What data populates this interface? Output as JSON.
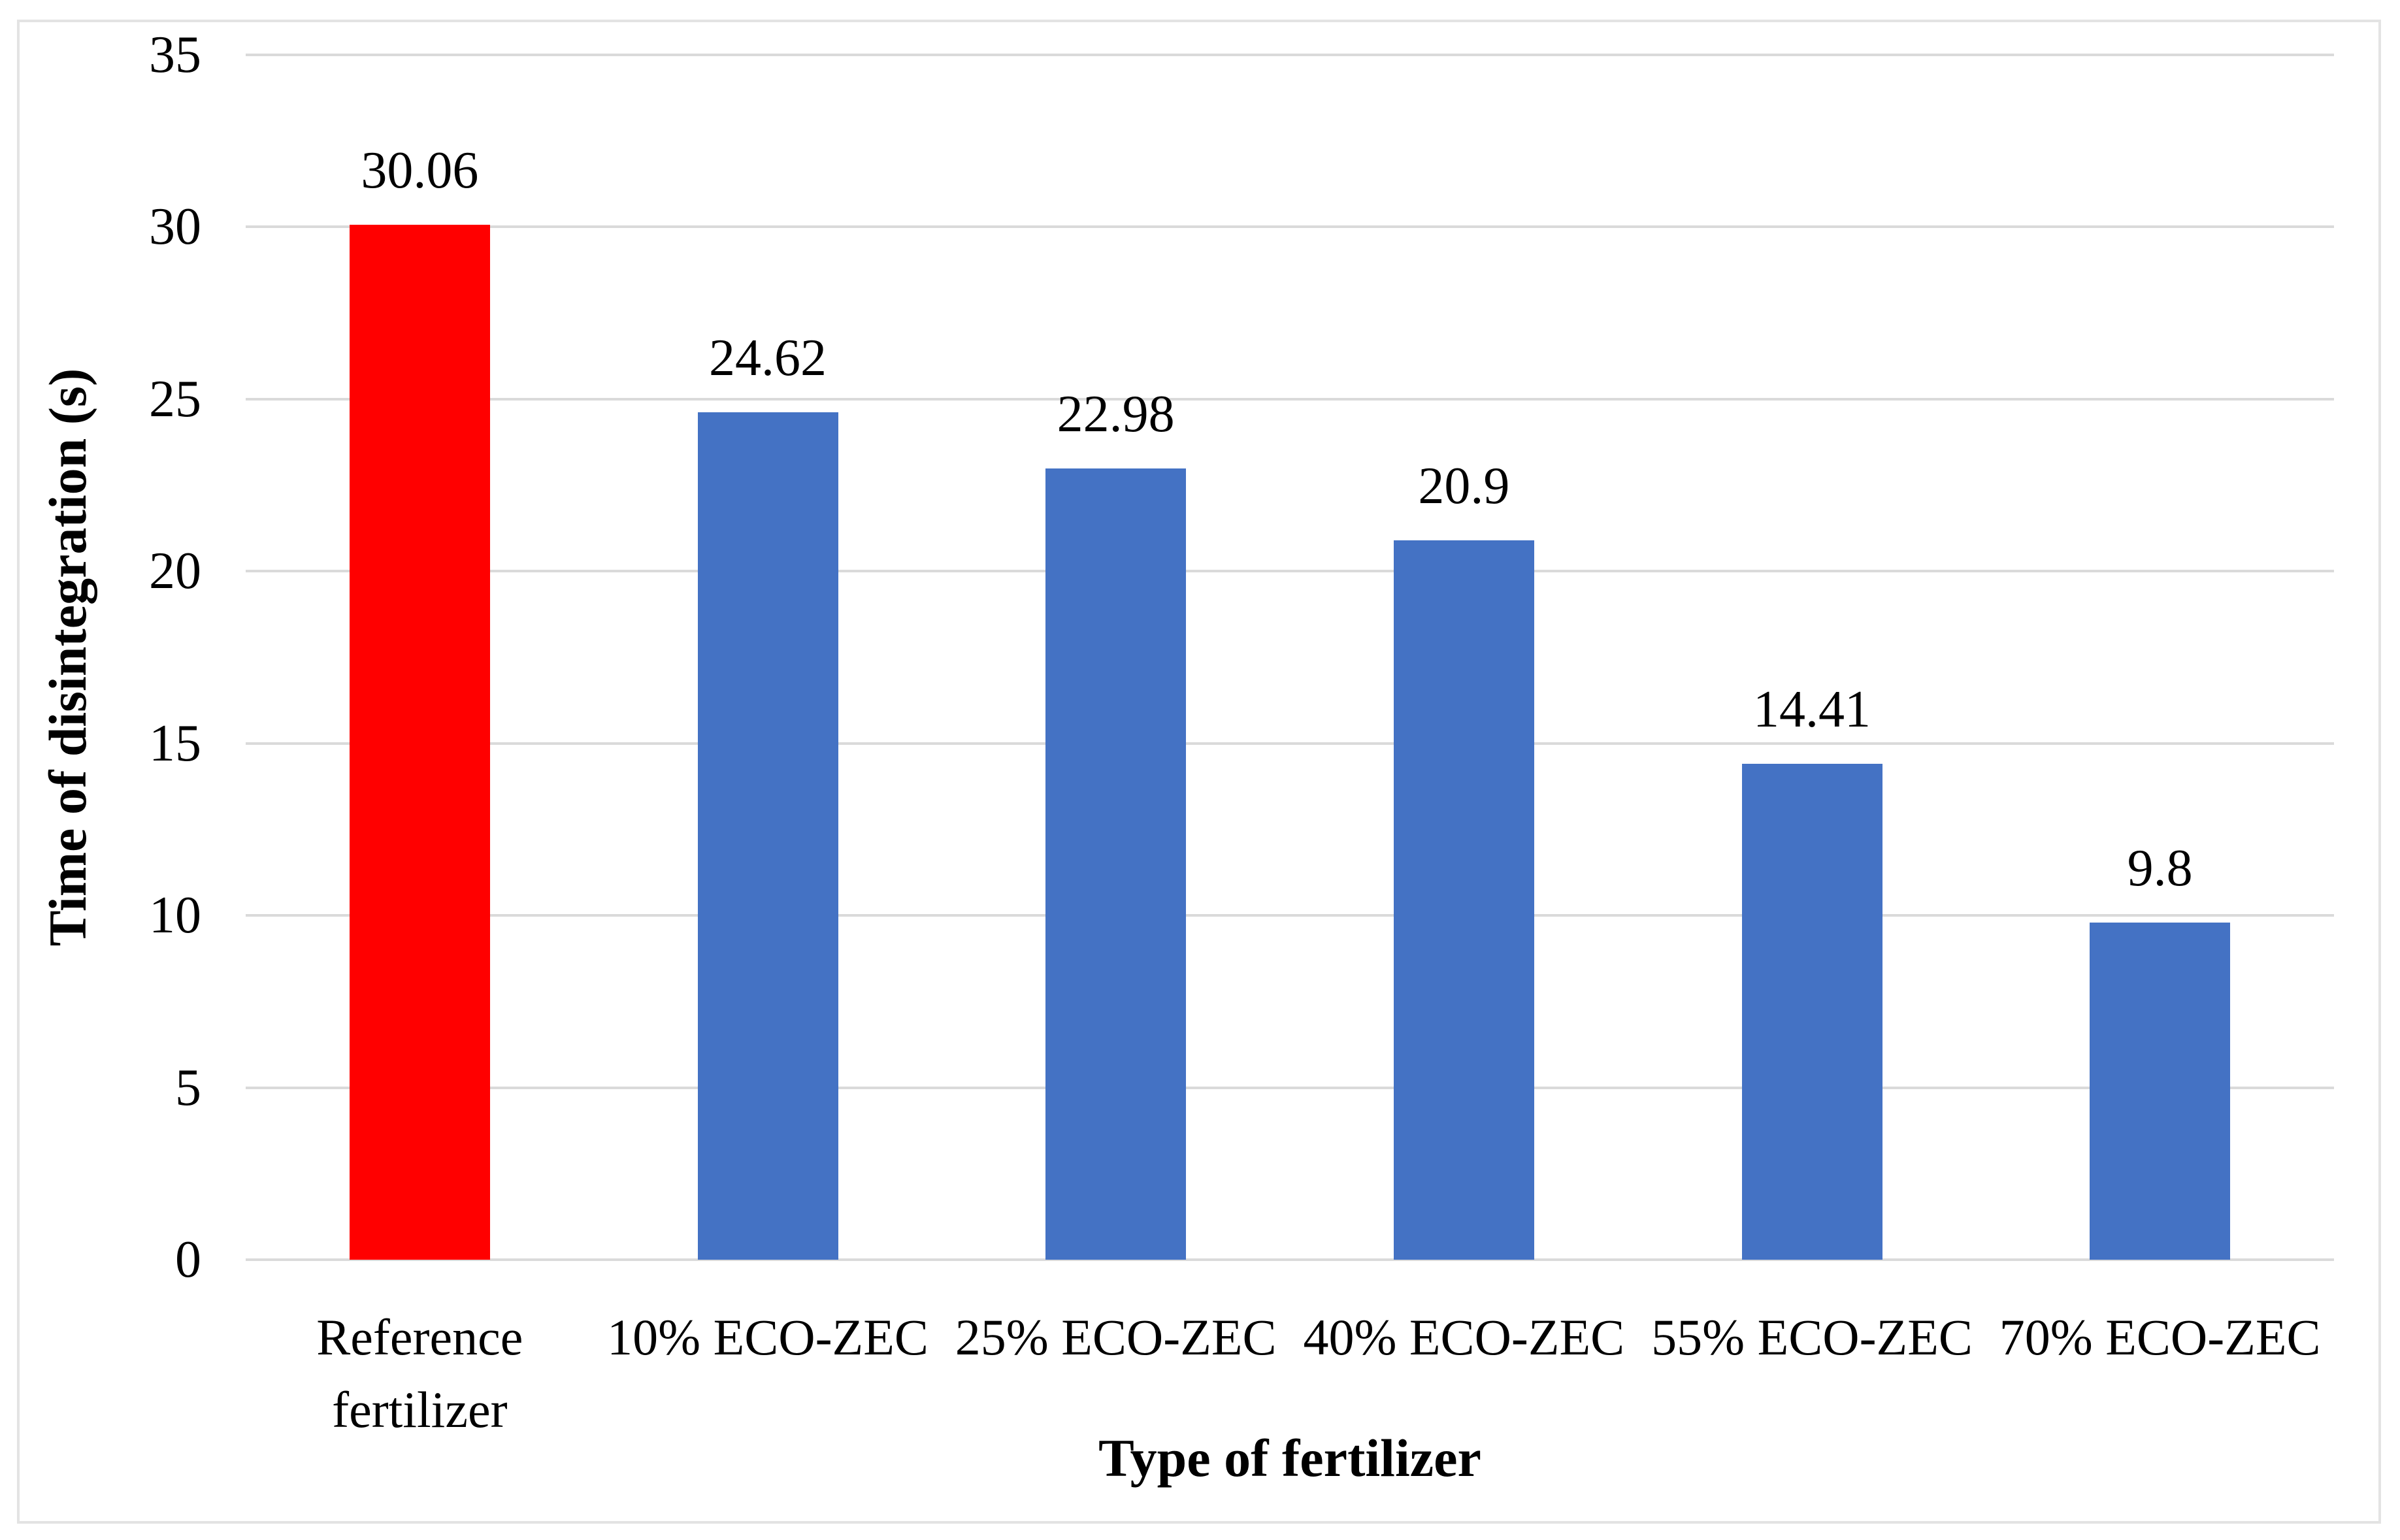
{
  "chart_data": {
    "type": "bar",
    "title": "",
    "categories": [
      "Reference fertilizer",
      "10% ECO-ZEC",
      "25% ECO-ZEC",
      "40% ECO-ZEC",
      "55% ECO-ZEC",
      "70% ECO-ZEC"
    ],
    "values": [
      30.06,
      24.62,
      22.98,
      20.9,
      14.41,
      9.8
    ],
    "data_labels": [
      "30.06",
      "24.62",
      "22.98",
      "20.9",
      "14.41",
      "9.8"
    ],
    "bar_colors": [
      "#FF0000",
      "#4472C4",
      "#4472C4",
      "#4472C4",
      "#4472C4",
      "#4472C4"
    ],
    "xlabel": "Type of fertilizer",
    "ylabel": "Time of disintegration (s)",
    "ylim": [
      0,
      35
    ],
    "ytick_step": 5,
    "ytick_labels": [
      "0",
      "5",
      "10",
      "15",
      "20",
      "25",
      "30",
      "35"
    ],
    "grid": "horizontal-only",
    "legend_position": "none",
    "colors": {
      "reference_bar": "#FF0000",
      "series_bar": "#4472C4",
      "gridline": "#DADADA",
      "figure_border": "#E3E3E3",
      "text": "#000000",
      "background": "#FFFFFF"
    }
  }
}
